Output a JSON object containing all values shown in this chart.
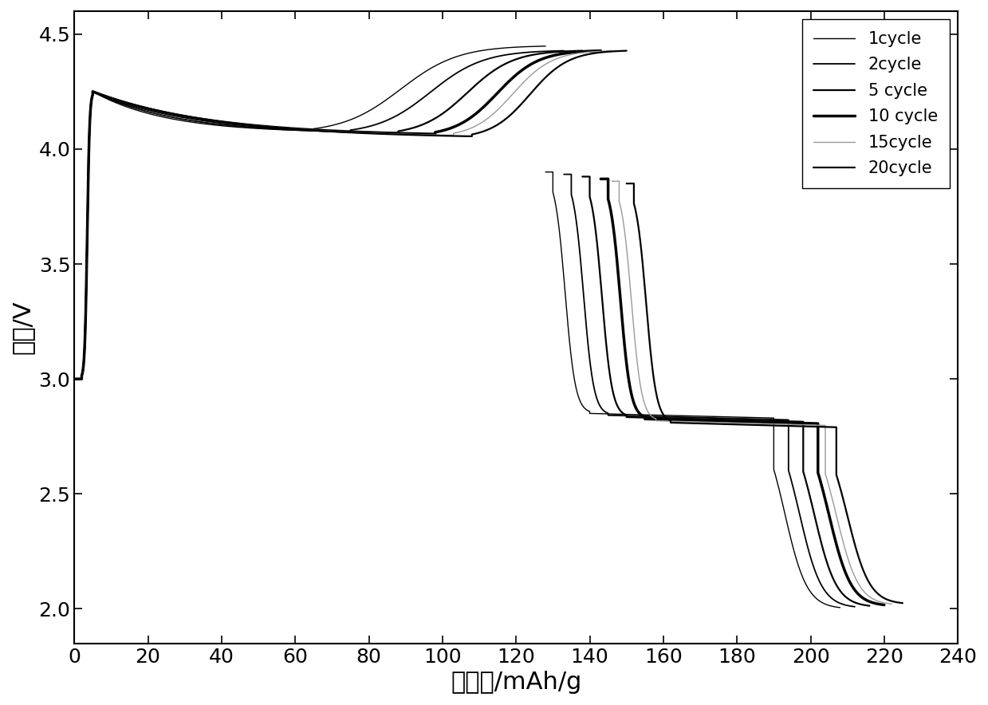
{
  "xlabel": "比容量/mAh/g",
  "ylabel": "电压/V",
  "xlim": [
    0,
    240
  ],
  "ylim": [
    1.85,
    4.6
  ],
  "xticks": [
    0,
    20,
    40,
    60,
    80,
    100,
    120,
    140,
    160,
    180,
    200,
    220,
    240
  ],
  "yticks": [
    2.0,
    2.5,
    3.0,
    3.5,
    4.0,
    4.5
  ],
  "legend_labels": [
    "1cycle",
    "2cycle",
    "5 cycle",
    "10 cycle",
    "15cycle",
    "20cycle"
  ],
  "line_colors": [
    "#000000",
    "#000000",
    "#000000",
    "#000000",
    "#999999",
    "#000000"
  ],
  "line_widths": [
    1.0,
    1.3,
    1.6,
    2.5,
    1.0,
    1.6
  ],
  "background_color": "#ffffff",
  "font_size_labels": 22,
  "font_size_ticks": 18,
  "font_size_legend": 15,
  "cycles": [
    {
      "charge_knee": 65,
      "charge_end": 128,
      "discharge_start": 128,
      "discharge_knee": 140,
      "discharge_end": 208
    },
    {
      "charge_knee": 75,
      "charge_end": 133,
      "discharge_start": 133,
      "discharge_knee": 141,
      "discharge_end": 212
    },
    {
      "charge_knee": 88,
      "charge_end": 138,
      "discharge_start": 138,
      "discharge_knee": 142,
      "discharge_end": 216
    },
    {
      "charge_knee": 98,
      "charge_end": 143,
      "discharge_start": 143,
      "discharge_knee": 143,
      "discharge_end": 220
    },
    {
      "charge_knee": 103,
      "charge_end": 146,
      "discharge_start": 146,
      "discharge_knee": 144,
      "discharge_end": 222
    },
    {
      "charge_knee": 108,
      "charge_end": 150,
      "discharge_start": 150,
      "discharge_knee": 145,
      "discharge_end": 225
    }
  ]
}
